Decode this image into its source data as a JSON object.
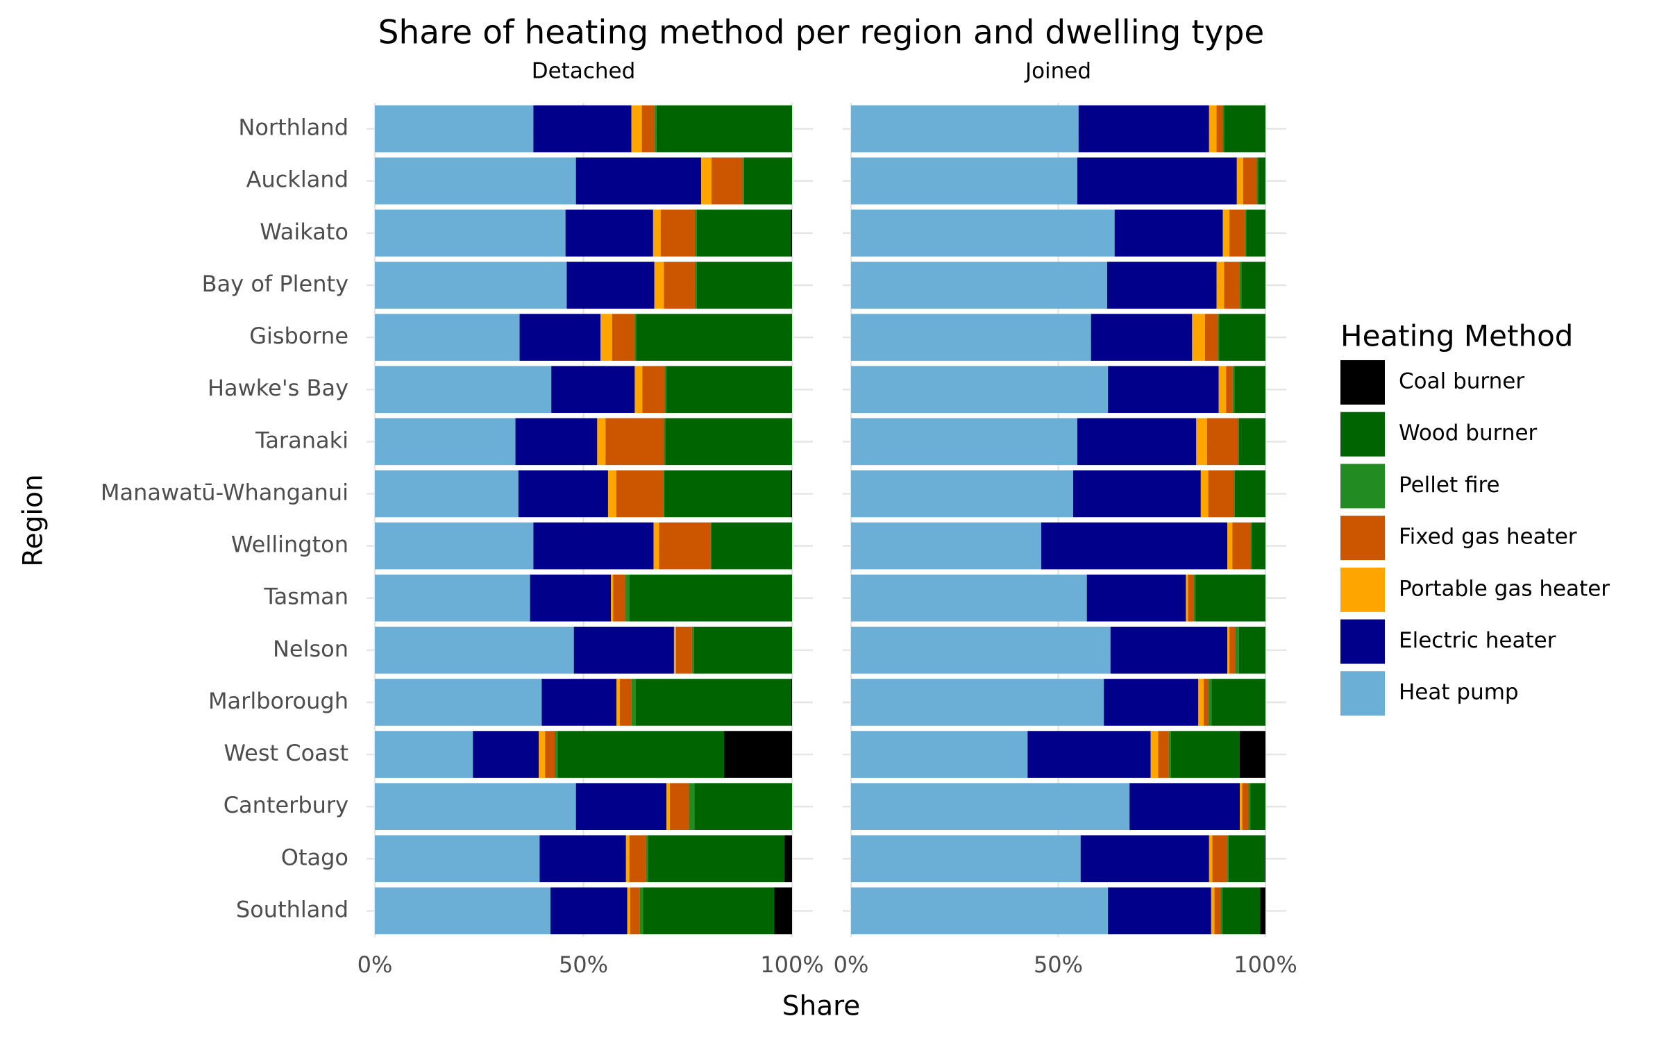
{
  "chart_data": {
    "type": "bar",
    "orientation": "horizontal",
    "stacked": true,
    "title": "Share of heating method per region and dwelling type",
    "xlabel": "Share",
    "ylabel": "Region",
    "legend_title": "Heating Method",
    "legend_position": "right",
    "grid": true,
    "categories": [
      "Northland",
      "Auckland",
      "Waikato",
      "Bay of Plenty",
      "Gisborne",
      "Hawke's Bay",
      "Taranaki",
      "Manawatū-Whanganui",
      "Wellington",
      "Tasman",
      "Nelson",
      "Marlborough",
      "West Coast",
      "Canterbury",
      "Otago",
      "Southland"
    ],
    "series": [
      {
        "name": "Heat pump",
        "color": "#6baed6"
      },
      {
        "name": "Electric heater",
        "color": "#00008b"
      },
      {
        "name": "Portable gas heater",
        "color": "#ffa500"
      },
      {
        "name": "Fixed gas heater",
        "color": "#cc5500"
      },
      {
        "name": "Pellet fire",
        "color": "#228b22"
      },
      {
        "name": "Wood burner",
        "color": "#006400"
      },
      {
        "name": "Coal burner",
        "color": "#000000"
      }
    ],
    "panels": [
      {
        "title": "Detached",
        "xlim": [
          0,
          100
        ],
        "xticks": [
          {
            "value": 0,
            "label": "0%"
          },
          {
            "value": 50,
            "label": "50%"
          },
          {
            "value": 100,
            "label": "100%"
          }
        ],
        "series": [
          {
            "values": [
              38,
              48.2,
              45.7,
              46,
              34.7,
              42.3,
              33.7,
              34.4,
              38,
              37.2,
              47.7,
              40,
              23.5,
              48.2,
              39.5,
              42.1
            ]
          },
          {
            "values": [
              23.5,
              30,
              21,
              21,
              19.4,
              20,
              19.6,
              21.5,
              28.8,
              19.4,
              24,
              17.9,
              15.8,
              21.7,
              20.7,
              18.4
            ]
          },
          {
            "values": [
              2.5,
              2.5,
              1.8,
              2.3,
              2.8,
              1.8,
              2,
              2,
              1.3,
              0.5,
              0.5,
              0.8,
              1.5,
              0.8,
              0.8,
              0.7
            ]
          },
          {
            "values": [
              3,
              7.5,
              8.2,
              7.4,
              5.4,
              5.3,
              14,
              11.2,
              12.3,
              2.9,
              3.8,
              2.8,
              2.3,
              4.6,
              4,
              2.3
            ]
          },
          {
            "values": [
              0.5,
              0.3,
              0.5,
              0.5,
              0.3,
              0.5,
              0.3,
              0.3,
              0.3,
              1,
              0.5,
              1,
              0.7,
              1.3,
              0.5,
              0.8
            ]
          },
          {
            "values": [
              32.5,
              11.5,
              22.5,
              22.8,
              37.4,
              30.1,
              30.4,
              30.3,
              19.3,
              39,
              23.5,
              37.3,
              39.9,
              23.4,
              32.7,
              31.4
            ]
          },
          {
            "values": [
              0,
              0,
              0.3,
              0,
              0,
              0,
              0,
              0.3,
              0,
              0,
              0,
              0.2,
              16.3,
              0,
              1.8,
              4.3
            ]
          }
        ]
      },
      {
        "title": "Joined",
        "xlim": [
          0,
          100
        ],
        "xticks": [
          {
            "value": 0,
            "label": "0%"
          },
          {
            "value": 50,
            "label": "50%"
          },
          {
            "value": 100,
            "label": "100%"
          }
        ],
        "series": [
          {
            "values": [
              54.9,
              54.6,
              63.6,
              61.8,
              57.9,
              62,
              54.6,
              53.6,
              45.9,
              56.9,
              62.6,
              61,
              42.6,
              67.2,
              55.4,
              62
            ]
          },
          {
            "values": [
              31.5,
              38.5,
              26.1,
              26.4,
              24.4,
              26.7,
              28.7,
              30.8,
              44.9,
              23.9,
              28.2,
              22.8,
              29.7,
              26.6,
              31,
              24.9
            ]
          },
          {
            "values": [
              1.8,
              1.5,
              1.6,
              1.8,
              3.1,
              1.8,
              2.6,
              1.8,
              1.2,
              0.5,
              0.5,
              1.3,
              1.8,
              0.6,
              0.8,
              0.8
            ]
          },
          {
            "values": [
              1.5,
              3.3,
              3.8,
              3.8,
              3.1,
              1.5,
              7.4,
              6.1,
              4.4,
              1.3,
              1.5,
              1.1,
              2.6,
              1.5,
              3.6,
              1.5
            ]
          },
          {
            "values": [
              0.3,
              0.3,
              0.3,
              0.4,
              0.3,
              0.5,
              0.3,
              0.3,
              0.3,
              0.5,
              0.8,
              0.8,
              0.5,
              0.5,
              0.3,
              0.5
            ]
          },
          {
            "values": [
              10,
              1.8,
              4.6,
              5.8,
              11.2,
              7.5,
              6.4,
              7.4,
              3.3,
              16.9,
              6.4,
              13,
              16.6,
              3.6,
              8.7,
              9
            ]
          },
          {
            "values": [
              0,
              0,
              0,
              0,
              0,
              0,
              0,
              0,
              0,
              0,
              0,
              0,
              6.2,
              0,
              0.2,
              1.3
            ]
          }
        ]
      }
    ]
  }
}
